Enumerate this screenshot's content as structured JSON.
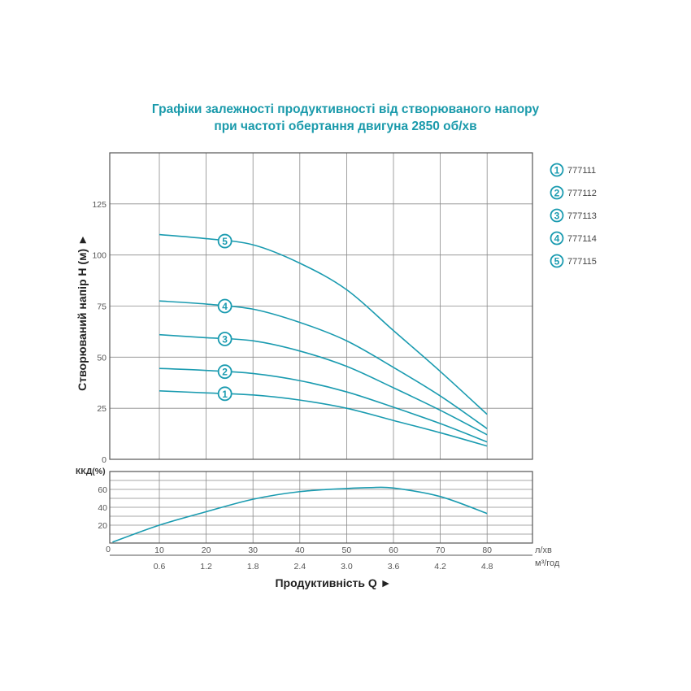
{
  "colors": {
    "accent": "#1a9bb0",
    "grid": "#8a8a8a",
    "axis": "#555555"
  },
  "chart_data": [
    {
      "type": "line",
      "title_lines": [
        "Графіки залежності продуктивності від створюваного напору",
        "при частоті обертання двигуна 2850 об/хв"
      ],
      "ylabel": "Створюваний напір H (м) ►",
      "xlim": [
        0,
        90
      ],
      "ylim": [
        0,
        150
      ],
      "yticks": [
        0,
        25,
        50,
        75,
        100,
        125
      ],
      "xgrid": [
        10,
        20,
        30,
        40,
        50,
        60,
        70,
        80
      ],
      "grid": true,
      "legend_placement": "right",
      "x": [
        10,
        20,
        30,
        40,
        50,
        60,
        70,
        80
      ],
      "series": [
        {
          "marker": "1",
          "name": "777111",
          "values": [
            33.5,
            32.5,
            31.5,
            29,
            25,
            19,
            13,
            6.5
          ]
        },
        {
          "marker": "2",
          "name": "777112",
          "values": [
            44.5,
            43.5,
            42,
            38.5,
            33,
            25.5,
            17.5,
            8.5
          ]
        },
        {
          "marker": "3",
          "name": "777113",
          "values": [
            61,
            59.5,
            58,
            53,
            45.5,
            35,
            24,
            12
          ]
        },
        {
          "marker": "4",
          "name": "777114",
          "values": [
            77.5,
            76,
            73.5,
            67,
            58,
            45,
            31,
            15
          ]
        },
        {
          "marker": "5",
          "name": "777115",
          "values": [
            110,
            108,
            105,
            96,
            83,
            63,
            43,
            22
          ]
        }
      ],
      "marker_x": 24
    },
    {
      "type": "line",
      "ylabel": "ККД(%)",
      "xlabel": "Продуктивність  Q ►",
      "xlim": [
        0,
        90
      ],
      "ylim": [
        0,
        80
      ],
      "yticks": [
        20,
        40,
        60
      ],
      "x_origin_label": "0",
      "grid": true,
      "x": [
        0,
        10,
        20,
        30,
        40,
        50,
        55,
        60,
        70,
        80
      ],
      "values": [
        1,
        20,
        35,
        49,
        57.5,
        61,
        62,
        61.5,
        52,
        33
      ],
      "xticks_primary": {
        "unit": "л/хв",
        "labels": [
          "10",
          "20",
          "30",
          "40",
          "50",
          "60",
          "70",
          "80"
        ]
      },
      "xticks_secondary": {
        "unit": "м³/год",
        "labels": [
          "0.6",
          "1.2",
          "1.8",
          "2.4",
          "3.0",
          "3.6",
          "4.2",
          "4.8"
        ]
      }
    }
  ]
}
